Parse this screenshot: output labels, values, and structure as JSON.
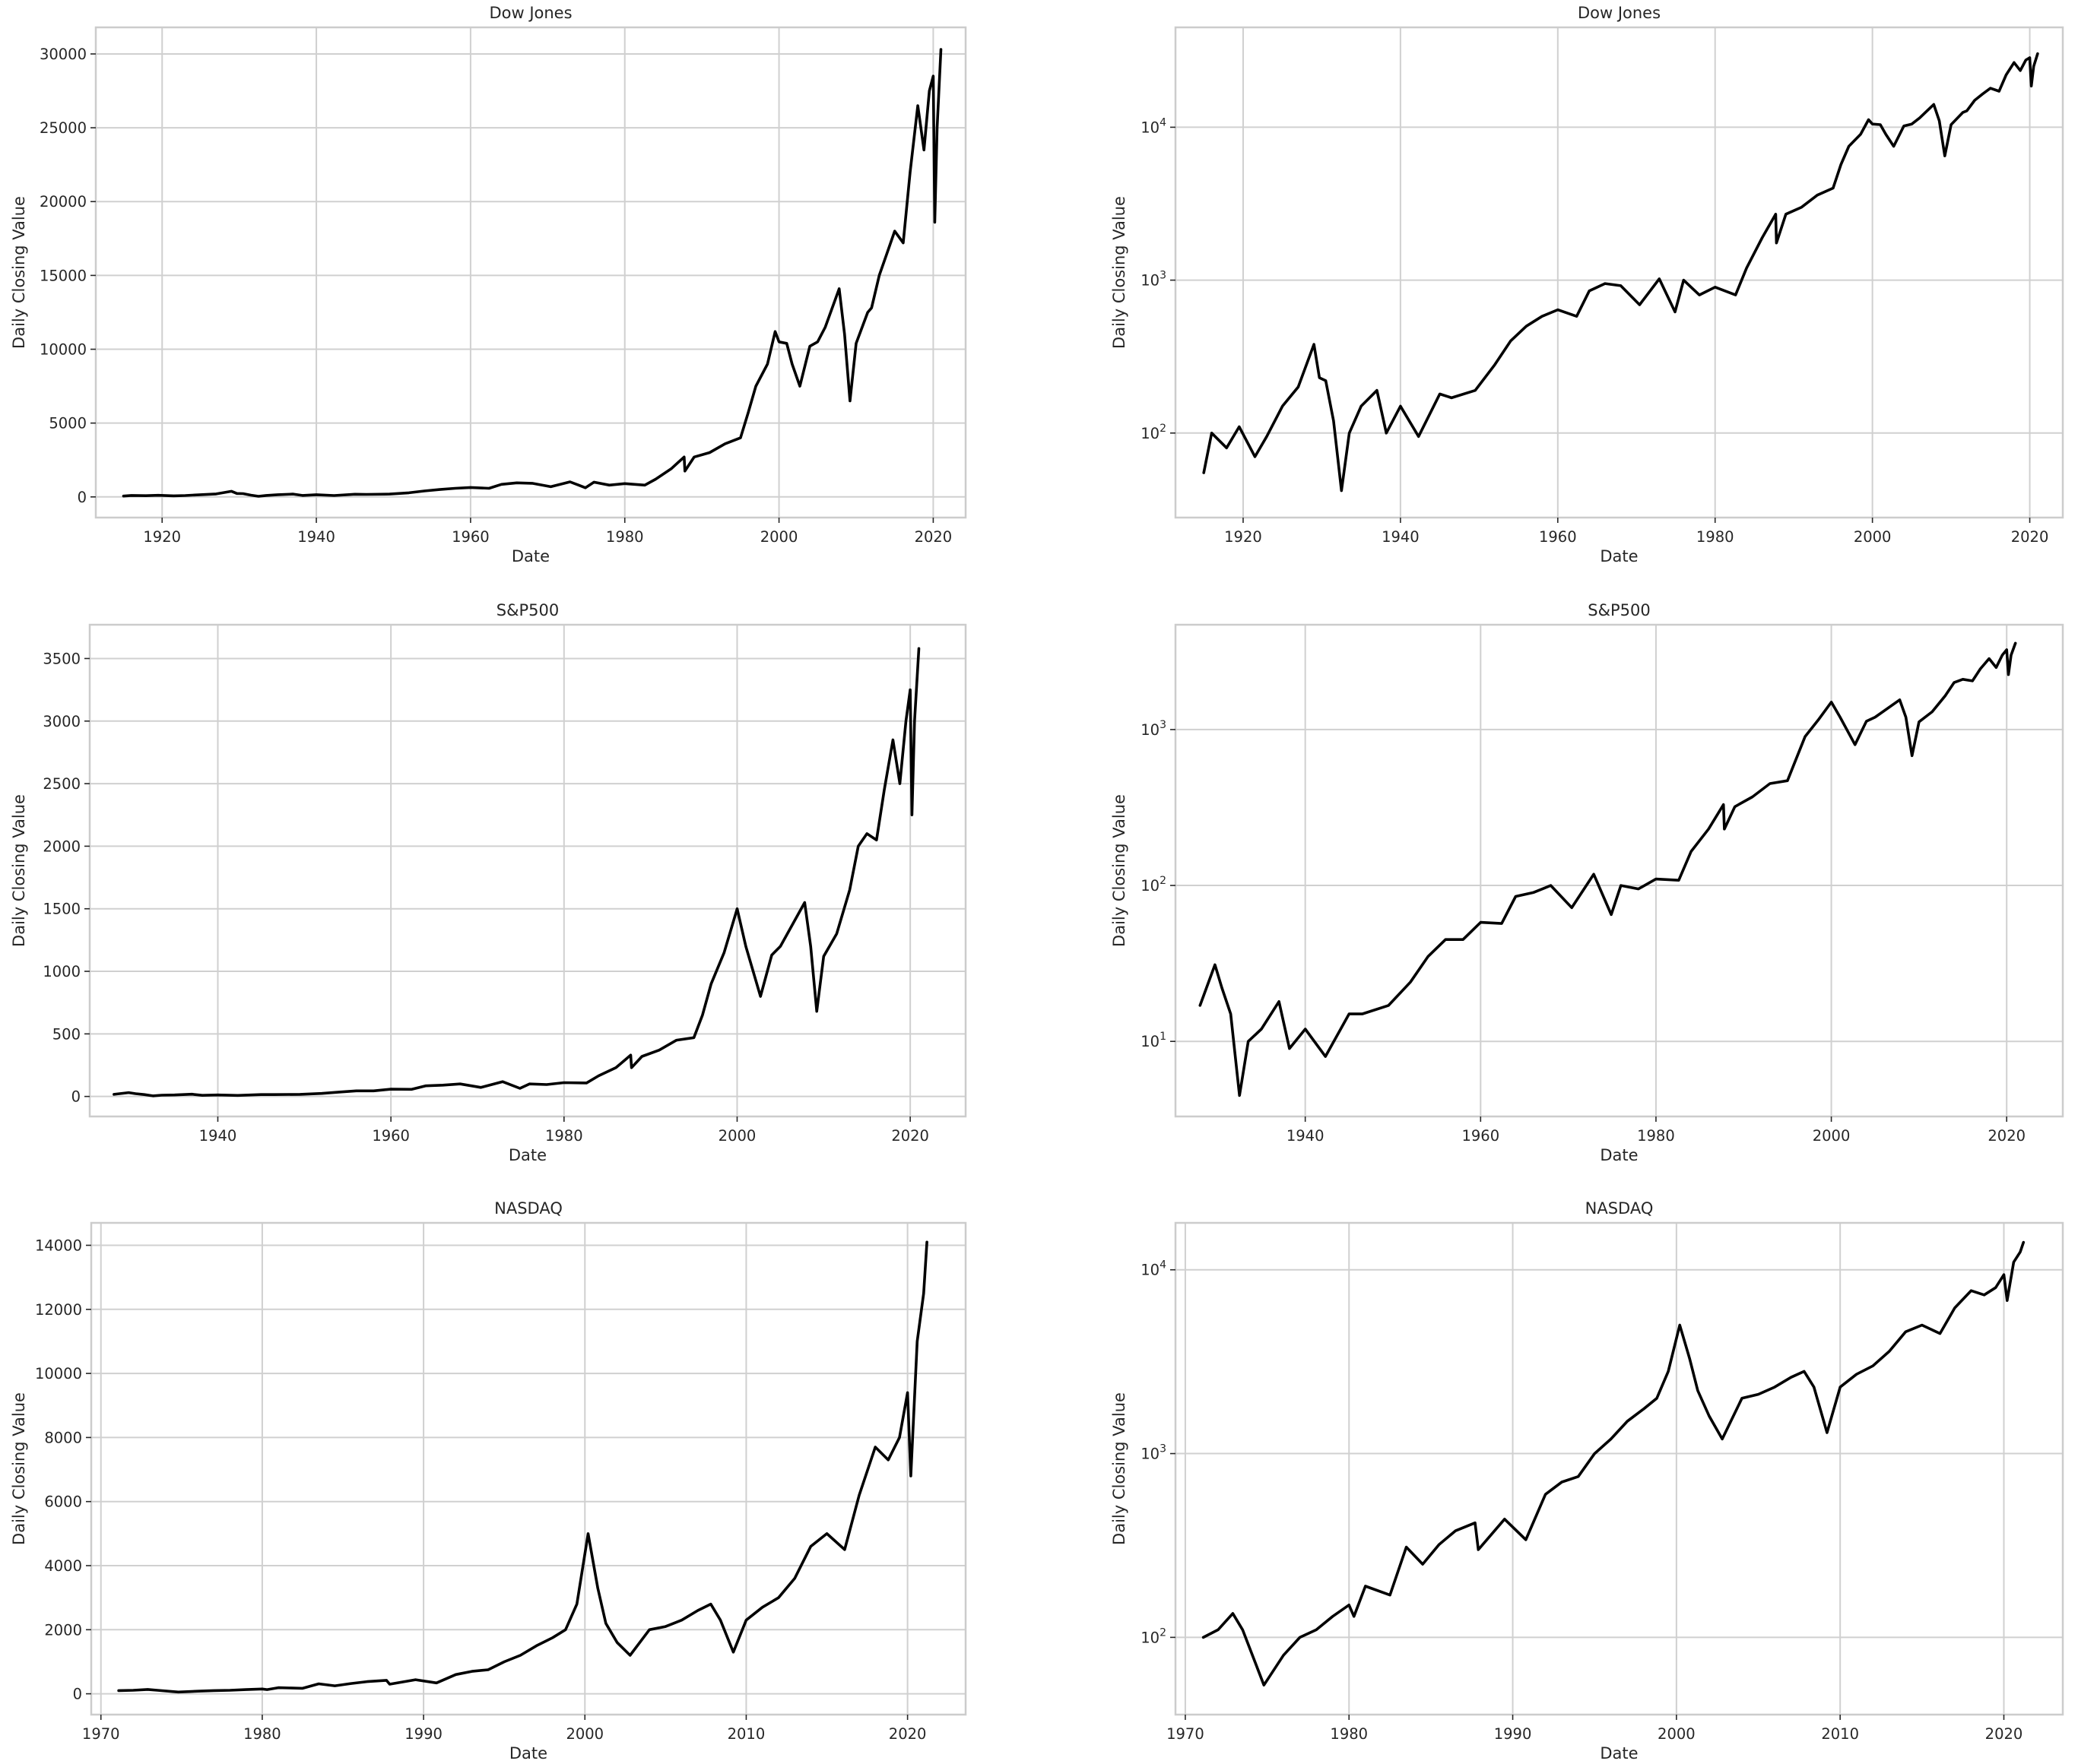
{
  "chart_data": [
    {
      "type": "line",
      "title": "Dow Jones",
      "xlabel": "Date",
      "ylabel": "Daily Closing Value",
      "yscale": "linear",
      "grid": true,
      "color": "#000000",
      "xlim": [
        1911.4,
        2024.2
      ],
      "ylim": [
        -1400,
        31800
      ],
      "xticks": [
        1920,
        1940,
        1960,
        1980,
        2000,
        2020
      ],
      "yticks": [
        0,
        5000,
        10000,
        15000,
        20000,
        25000,
        30000
      ],
      "ytick_labels": [
        "0",
        "5000",
        "10000",
        "15000",
        "20000",
        "25000",
        "30000"
      ],
      "x": [
        1915.0,
        1916.0,
        1917.9,
        1919.5,
        1921.5,
        1923.0,
        1925.0,
        1927.0,
        1929.0,
        1929.7,
        1930.5,
        1931.5,
        1932.5,
        1933.5,
        1935.0,
        1937.0,
        1938.2,
        1940.0,
        1942.3,
        1945.0,
        1946.5,
        1949.5,
        1952.0,
        1954.0,
        1956.0,
        1958.0,
        1960.0,
        1962.4,
        1964.0,
        1966.0,
        1968.0,
        1970.4,
        1972.9,
        1974.9,
        1976.0,
        1978.0,
        1980.0,
        1982.6,
        1984.0,
        1986.0,
        1987.7,
        1987.8,
        1989.0,
        1991.0,
        1993.0,
        1995.0,
        1996.0,
        1997.0,
        1998.5,
        1999.5,
        2000.0,
        2001.0,
        2001.7,
        2002.7,
        2004.0,
        2005.0,
        2006.0,
        2007.8,
        2008.5,
        2009.2,
        2010.0,
        2011.5,
        2012.0,
        2013.0,
        2014.0,
        2015.0,
        2016.1,
        2017.0,
        2018.0,
        2018.8,
        2019.5,
        2020.0,
        2020.2,
        2020.5,
        2021.0
      ],
      "y": [
        55,
        100,
        80,
        110,
        70,
        95,
        150,
        200,
        380,
        230,
        220,
        120,
        42,
        100,
        150,
        190,
        100,
        150,
        95,
        180,
        170,
        190,
        280,
        400,
        500,
        580,
        640,
        580,
        850,
        950,
        920,
        690,
        1020,
        620,
        1000,
        800,
        900,
        800,
        1200,
        1900,
        2700,
        1750,
        2700,
        3000,
        3600,
        4000,
        5700,
        7500,
        9000,
        11200,
        10500,
        10400,
        9000,
        7500,
        10200,
        10500,
        11500,
        14100,
        11000,
        6500,
        10400,
        12500,
        12800,
        15000,
        16500,
        18000,
        17200,
        22000,
        26500,
        23500,
        27500,
        28500,
        18600,
        25000,
        30300
      ]
    },
    {
      "type": "line",
      "title": "Dow Jones",
      "xlabel": "Date",
      "ylabel": "Daily Closing Value",
      "yscale": "log",
      "grid": true,
      "color": "#000000",
      "xlim": [
        1911.4,
        2024.2
      ],
      "ylim": [
        28,
        45000
      ],
      "xticks": [
        1920,
        1940,
        1960,
        1980,
        2000,
        2020
      ],
      "yticks": [
        100,
        1000,
        10000
      ],
      "ytick_labels": [
        "10",
        "10",
        "10"
      ],
      "ytick_exponents": [
        "2",
        "3",
        "4"
      ],
      "x": [
        1915.0,
        1916.0,
        1917.9,
        1919.5,
        1921.5,
        1923.0,
        1925.0,
        1927.0,
        1929.0,
        1929.7,
        1930.5,
        1931.5,
        1932.5,
        1933.5,
        1935.0,
        1937.0,
        1938.2,
        1940.0,
        1942.3,
        1945.0,
        1946.5,
        1949.5,
        1952.0,
        1954.0,
        1956.0,
        1958.0,
        1960.0,
        1962.4,
        1964.0,
        1966.0,
        1968.0,
        1970.4,
        1972.9,
        1974.9,
        1976.0,
        1978.0,
        1980.0,
        1982.6,
        1984.0,
        1986.0,
        1987.7,
        1987.8,
        1989.0,
        1991.0,
        1993.0,
        1995.0,
        1996.0,
        1997.0,
        1998.5,
        1999.5,
        2000.0,
        2001.0,
        2001.7,
        2002.7,
        2004.0,
        2005.0,
        2006.0,
        2007.8,
        2008.5,
        2009.2,
        2010.0,
        2011.5,
        2012.0,
        2013.0,
        2014.0,
        2015.0,
        2016.1,
        2017.0,
        2018.0,
        2018.8,
        2019.5,
        2020.0,
        2020.2,
        2020.5,
        2021.0
      ],
      "y": [
        55,
        100,
        80,
        110,
        70,
        95,
        150,
        200,
        380,
        230,
        220,
        120,
        42,
        100,
        150,
        190,
        100,
        150,
        95,
        180,
        170,
        190,
        280,
        400,
        500,
        580,
        640,
        580,
        850,
        950,
        920,
        690,
        1020,
        620,
        1000,
        800,
        900,
        800,
        1200,
        1900,
        2700,
        1750,
        2700,
        3000,
        3600,
        4000,
        5700,
        7500,
        9000,
        11200,
        10500,
        10400,
        9000,
        7500,
        10200,
        10500,
        11500,
        14100,
        11000,
        6500,
        10400,
        12500,
        12800,
        15000,
        16500,
        18000,
        17200,
        22000,
        26500,
        23500,
        27500,
        28500,
        18600,
        25000,
        30300
      ]
    },
    {
      "type": "line",
      "title": "S&P500",
      "xlabel": "Date",
      "ylabel": "Daily Closing Value",
      "yscale": "linear",
      "grid": true,
      "color": "#000000",
      "xlim": [
        1925.2,
        2026.4
      ],
      "ylim": [
        -160,
        3770
      ],
      "xticks": [
        1940,
        1960,
        1980,
        2000,
        2020
      ],
      "yticks": [
        0,
        500,
        1000,
        1500,
        2000,
        2500,
        3000,
        3500
      ],
      "ytick_labels": [
        "0",
        "500",
        "1000",
        "1500",
        "2000",
        "2500",
        "3000",
        "3500"
      ],
      "x": [
        1928.0,
        1929.7,
        1930.5,
        1931.5,
        1932.5,
        1933.5,
        1935.0,
        1937.0,
        1938.2,
        1940.0,
        1942.3,
        1945.0,
        1946.5,
        1949.5,
        1952.0,
        1954.0,
        1956.0,
        1958.0,
        1960.0,
        1962.4,
        1964.0,
        1966.0,
        1968.0,
        1970.4,
        1972.9,
        1974.9,
        1976.0,
        1978.0,
        1980.0,
        1982.6,
        1984.0,
        1986.0,
        1987.7,
        1987.8,
        1989.0,
        1991.0,
        1993.0,
        1995.0,
        1996.0,
        1997.0,
        1998.5,
        2000.0,
        2001.0,
        2002.7,
        2004.0,
        2005.0,
        2007.8,
        2008.5,
        2009.2,
        2010.0,
        2011.5,
        2013.0,
        2014.0,
        2015.0,
        2016.1,
        2017.0,
        2018.0,
        2018.8,
        2019.5,
        2020.0,
        2020.2,
        2020.5,
        2021.0
      ],
      "y": [
        17,
        31,
        22,
        15,
        4.5,
        10,
        12,
        18,
        9,
        12,
        8,
        15,
        15,
        17,
        24,
        35,
        45,
        45,
        58,
        57,
        85,
        90,
        100,
        72,
        118,
        65,
        100,
        95,
        110,
        108,
        165,
        230,
        330,
        230,
        320,
        370,
        450,
        470,
        650,
        900,
        1150,
        1500,
        1200,
        800,
        1130,
        1200,
        1550,
        1200,
        680,
        1120,
        1300,
        1650,
        2000,
        2100,
        2050,
        2450,
        2850,
        2500,
        3000,
        3250,
        2250,
        3000,
        3580
      ]
    },
    {
      "type": "line",
      "title": "S&P500",
      "xlabel": "Date",
      "ylabel": "Daily Closing Value",
      "yscale": "log",
      "grid": true,
      "color": "#000000",
      "xlim": [
        1925.2,
        2026.4
      ],
      "ylim": [
        3.3,
        4700
      ],
      "xticks": [
        1940,
        1960,
        1980,
        2000,
        2020
      ],
      "yticks": [
        10,
        100,
        1000
      ],
      "ytick_labels": [
        "10",
        "10",
        "10"
      ],
      "ytick_exponents": [
        "1",
        "2",
        "3"
      ],
      "x": [
        1928.0,
        1929.7,
        1930.5,
        1931.5,
        1932.5,
        1933.5,
        1935.0,
        1937.0,
        1938.2,
        1940.0,
        1942.3,
        1945.0,
        1946.5,
        1949.5,
        1952.0,
        1954.0,
        1956.0,
        1958.0,
        1960.0,
        1962.4,
        1964.0,
        1966.0,
        1968.0,
        1970.4,
        1972.9,
        1974.9,
        1976.0,
        1978.0,
        1980.0,
        1982.6,
        1984.0,
        1986.0,
        1987.7,
        1987.8,
        1989.0,
        1991.0,
        1993.0,
        1995.0,
        1996.0,
        1997.0,
        1998.5,
        2000.0,
        2001.0,
        2002.7,
        2004.0,
        2005.0,
        2007.8,
        2008.5,
        2009.2,
        2010.0,
        2011.5,
        2013.0,
        2014.0,
        2015.0,
        2016.1,
        2017.0,
        2018.0,
        2018.8,
        2019.5,
        2020.0,
        2020.2,
        2020.5,
        2021.0
      ],
      "y": [
        17,
        31,
        22,
        15,
        4.5,
        10,
        12,
        18,
        9,
        12,
        8,
        15,
        15,
        17,
        24,
        35,
        45,
        45,
        58,
        57,
        85,
        90,
        100,
        72,
        118,
        65,
        100,
        95,
        110,
        108,
        165,
        230,
        330,
        230,
        320,
        370,
        450,
        470,
        650,
        900,
        1150,
        1500,
        1200,
        800,
        1130,
        1200,
        1550,
        1200,
        680,
        1120,
        1300,
        1650,
        2000,
        2100,
        2050,
        2450,
        2850,
        2500,
        3000,
        3250,
        2250,
        3000,
        3580
      ]
    },
    {
      "type": "line",
      "title": "NASDAQ",
      "xlabel": "Date",
      "ylabel": "Daily Closing Value",
      "yscale": "linear",
      "grid": true,
      "color": "#000000",
      "xlim": [
        1969.4,
        2023.6
      ],
      "ylim": [
        -650,
        14700
      ],
      "xticks": [
        1970,
        1980,
        1990,
        2000,
        2010,
        2020
      ],
      "yticks": [
        0,
        2000,
        4000,
        6000,
        8000,
        10000,
        12000,
        14000
      ],
      "ytick_labels": [
        "0",
        "2000",
        "4000",
        "6000",
        "8000",
        "10000",
        "12000",
        "14000"
      ],
      "x": [
        1971.1,
        1972.0,
        1972.9,
        1973.5,
        1974.8,
        1976.0,
        1977.0,
        1978.0,
        1979.0,
        1980.0,
        1980.3,
        1981.0,
        1982.5,
        1983.5,
        1984.5,
        1985.5,
        1986.5,
        1987.7,
        1987.9,
        1989.5,
        1990.8,
        1992.0,
        1993.0,
        1994.0,
        1995.0,
        1996.0,
        1997.0,
        1998.0,
        1998.8,
        1999.5,
        2000.2,
        2000.8,
        2001.3,
        2002.0,
        2002.8,
        2004.0,
        2005.0,
        2006.0,
        2007.0,
        2007.8,
        2008.4,
        2009.2,
        2010.0,
        2011.0,
        2012.0,
        2013.0,
        2014.0,
        2015.0,
        2016.1,
        2017.0,
        2018.0,
        2018.8,
        2019.5,
        2020.0,
        2020.2,
        2020.6,
        2021.0,
        2021.2
      ],
      "y": [
        100,
        110,
        135,
        110,
        55,
        80,
        100,
        110,
        130,
        150,
        130,
        190,
        170,
        310,
        250,
        320,
        380,
        420,
        300,
        440,
        340,
        600,
        700,
        750,
        1000,
        1200,
        1500,
        1750,
        2000,
        2800,
        5000,
        3300,
        2200,
        1600,
        1200,
        2000,
        2100,
        2300,
        2600,
        2800,
        2300,
        1300,
        2300,
        2700,
        3000,
        3600,
        4600,
        5000,
        4500,
        6200,
        7700,
        7300,
        8000,
        9400,
        6800,
        11000,
        12500,
        14100
      ]
    },
    {
      "type": "line",
      "title": "NASDAQ",
      "xlabel": "Date",
      "ylabel": "Daily Closing Value",
      "yscale": "log",
      "grid": true,
      "color": "#000000",
      "xlim": [
        1969.4,
        2023.6
      ],
      "ylim": [
        38,
        18000
      ],
      "xticks": [
        1970,
        1980,
        1990,
        2000,
        2010,
        2020
      ],
      "yticks": [
        100,
        1000,
        10000
      ],
      "ytick_labels": [
        "10",
        "10",
        "10"
      ],
      "ytick_exponents": [
        "2",
        "3",
        "4"
      ],
      "x": [
        1971.1,
        1972.0,
        1972.9,
        1973.5,
        1974.8,
        1976.0,
        1977.0,
        1978.0,
        1979.0,
        1980.0,
        1980.3,
        1981.0,
        1982.5,
        1983.5,
        1984.5,
        1985.5,
        1986.5,
        1987.7,
        1987.9,
        1989.5,
        1990.8,
        1992.0,
        1993.0,
        1994.0,
        1995.0,
        1996.0,
        1997.0,
        1998.0,
        1998.8,
        1999.5,
        2000.2,
        2000.8,
        2001.3,
        2002.0,
        2002.8,
        2004.0,
        2005.0,
        2006.0,
        2007.0,
        2007.8,
        2008.4,
        2009.2,
        2010.0,
        2011.0,
        2012.0,
        2013.0,
        2014.0,
        2015.0,
        2016.1,
        2017.0,
        2018.0,
        2018.8,
        2019.5,
        2020.0,
        2020.2,
        2020.6,
        2021.0,
        2021.2
      ],
      "y": [
        100,
        110,
        135,
        110,
        55,
        80,
        100,
        110,
        130,
        150,
        130,
        190,
        170,
        310,
        250,
        320,
        380,
        420,
        300,
        440,
        340,
        600,
        700,
        750,
        1000,
        1200,
        1500,
        1750,
        2000,
        2800,
        5000,
        3300,
        2200,
        1600,
        1200,
        2000,
        2100,
        2300,
        2600,
        2800,
        2300,
        1300,
        2300,
        2700,
        3000,
        3600,
        4600,
        5000,
        4500,
        6200,
        7700,
        7300,
        8000,
        9400,
        6800,
        11000,
        12500,
        14100
      ]
    }
  ]
}
